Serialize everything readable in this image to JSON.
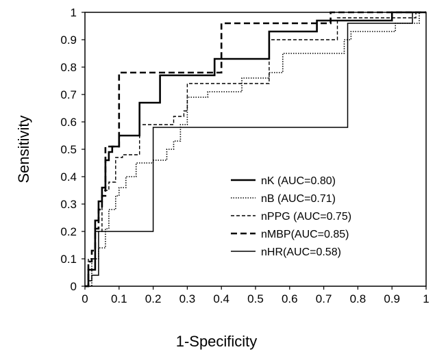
{
  "chart_data": {
    "type": "line",
    "title": "",
    "xlabel": "1-Specificity",
    "ylabel": "Sensitivity",
    "xlim": [
      0,
      1
    ],
    "ylim": [
      0,
      1
    ],
    "xticks": [
      "0",
      "0.1",
      "0.2",
      "0.3",
      "0.4",
      "0.5",
      "0.6",
      "0.7",
      "0.8",
      "0.9",
      "1"
    ],
    "yticks": [
      "0",
      "0.1",
      "0.2",
      "0.3",
      "0.4",
      "0.5",
      "0.6",
      "0.7",
      "0.8",
      "0.9",
      "1"
    ],
    "grid": false,
    "legend_position": "center-right",
    "series": [
      {
        "name": "nK (AUC=0.80)",
        "style": "solid-thick",
        "x": [
          0,
          0.01,
          0.01,
          0.03,
          0.03,
          0.04,
          0.04,
          0.05,
          0.05,
          0.06,
          0.06,
          0.07,
          0.07,
          0.08,
          0.08,
          0.1,
          0.1,
          0.13,
          0.13,
          0.16,
          0.16,
          0.2,
          0.2,
          0.22,
          0.22,
          0.38,
          0.38,
          0.54,
          0.54,
          0.68,
          0.68,
          0.9,
          0.9,
          1.0
        ],
        "y": [
          0,
          0,
          0.06,
          0.06,
          0.24,
          0.24,
          0.31,
          0.31,
          0.36,
          0.36,
          0.46,
          0.46,
          0.49,
          0.49,
          0.51,
          0.51,
          0.55,
          0.55,
          0.55,
          0.55,
          0.67,
          0.67,
          0.67,
          0.67,
          0.77,
          0.77,
          0.83,
          0.83,
          0.93,
          0.93,
          0.97,
          0.97,
          1.0,
          1.0
        ]
      },
      {
        "name": "nB (AUC=0.71)",
        "style": "dotted",
        "x": [
          0,
          0.02,
          0.02,
          0.04,
          0.04,
          0.06,
          0.06,
          0.07,
          0.07,
          0.09,
          0.09,
          0.1,
          0.1,
          0.12,
          0.12,
          0.15,
          0.15,
          0.2,
          0.2,
          0.24,
          0.24,
          0.26,
          0.26,
          0.28,
          0.28,
          0.3,
          0.3,
          0.36,
          0.36,
          0.4,
          0.4,
          0.46,
          0.46,
          0.54,
          0.54,
          0.58,
          0.58,
          0.76,
          0.76,
          0.78,
          0.78,
          0.84,
          0.84,
          0.91,
          0.91,
          0.98,
          0.98,
          1.0
        ],
        "y": [
          0,
          0,
          0.1,
          0.1,
          0.14,
          0.14,
          0.21,
          0.21,
          0.28,
          0.28,
          0.33,
          0.33,
          0.36,
          0.36,
          0.4,
          0.4,
          0.45,
          0.45,
          0.46,
          0.46,
          0.5,
          0.5,
          0.53,
          0.53,
          0.59,
          0.59,
          0.69,
          0.69,
          0.71,
          0.71,
          0.71,
          0.71,
          0.76,
          0.76,
          0.78,
          0.78,
          0.85,
          0.85,
          0.9,
          0.9,
          0.93,
          0.93,
          0.93,
          0.93,
          0.96,
          0.96,
          1.0,
          1.0
        ]
      },
      {
        "name": "nPPG (AUC=0.75)",
        "style": "dashed",
        "x": [
          0,
          0.01,
          0.01,
          0.03,
          0.03,
          0.05,
          0.05,
          0.07,
          0.07,
          0.09,
          0.09,
          0.11,
          0.11,
          0.16,
          0.16,
          0.26,
          0.26,
          0.29,
          0.29,
          0.3,
          0.3,
          0.54,
          0.54,
          0.74,
          0.74,
          0.97,
          0.97,
          1.0
        ],
        "y": [
          0,
          0,
          0.1,
          0.1,
          0.2,
          0.2,
          0.35,
          0.35,
          0.38,
          0.38,
          0.47,
          0.47,
          0.48,
          0.48,
          0.59,
          0.59,
          0.62,
          0.62,
          0.64,
          0.64,
          0.74,
          0.74,
          0.9,
          0.9,
          0.98,
          0.98,
          1.0,
          1.0
        ]
      },
      {
        "name": "nMBP(AUC=0.85)",
        "style": "dashed-thick",
        "x": [
          0,
          0.01,
          0.01,
          0.02,
          0.02,
          0.03,
          0.03,
          0.04,
          0.04,
          0.05,
          0.05,
          0.06,
          0.06,
          0.08,
          0.08,
          0.1,
          0.1,
          0.4,
          0.4,
          0.72,
          0.72,
          1.0
        ],
        "y": [
          0,
          0,
          0.09,
          0.09,
          0.13,
          0.13,
          0.21,
          0.21,
          0.28,
          0.28,
          0.33,
          0.33,
          0.51,
          0.51,
          0.51,
          0.51,
          0.78,
          0.78,
          0.96,
          0.96,
          1.0,
          1.0
        ]
      },
      {
        "name": "nHR(AUC=0.58)",
        "style": "solid-thin",
        "x": [
          0,
          0.01,
          0.01,
          0.02,
          0.02,
          0.04,
          0.04,
          0.06,
          0.06,
          0.2,
          0.2,
          0.77,
          0.77,
          0.96,
          0.96,
          1.0
        ],
        "y": [
          0,
          0,
          0.02,
          0.02,
          0.04,
          0.04,
          0.2,
          0.2,
          0.2,
          0.2,
          0.58,
          0.58,
          0.96,
          0.96,
          1.0,
          1.0
        ]
      }
    ]
  }
}
